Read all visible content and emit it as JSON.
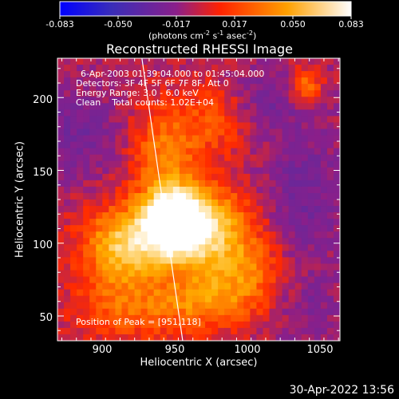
{
  "chart_data": {
    "type": "heatmap",
    "title": "Reconstructed RHESSI Image",
    "xlabel": "Heliocentric X (arcsec)",
    "ylabel": "Heliocentric Y (arcsec)",
    "xlim": [
      872,
      1066
    ],
    "ylim": [
      33,
      227
    ],
    "xticks": [
      "900",
      "950",
      "1000",
      "1050"
    ],
    "yticks": [
      "50",
      "100",
      "150",
      "200"
    ],
    "colorbar": {
      "ticks": [
        "-0.083",
        "-0.050",
        "-0.017",
        "0.017",
        "0.050",
        "0.083"
      ],
      "unit_prefix": "(photons cm",
      "unit_exp1": "-2",
      "unit_mid": " s",
      "unit_exp2": "-1",
      "unit_suffix": " asec",
      "unit_exp3": "-2",
      "unit_close": ")",
      "range": [
        -0.083,
        0.083
      ],
      "colormap": [
        "#0000ff",
        "#4b2fa8",
        "#8a1f8a",
        "#ff2a00",
        "#ffb000",
        "#ffffff"
      ]
    },
    "annotations": [
      "6-Apr-2003 01:39:04.000 to 01:45:04.000",
      "Detectors: 3F 4F 5F 6F 7F 8F, Att 0",
      "Energy Range: 3.0 - 6.0 keV",
      "Clean    Total counts: 1.02E+04"
    ],
    "peak_text": "Position of Peak = [951,118]",
    "peak": [
      951,
      118
    ],
    "sources": [
      {
        "x": 951,
        "y": 118,
        "amp": 0.083,
        "sx": 14,
        "sy": 14
      },
      {
        "x": 940,
        "y": 100,
        "amp": 0.055,
        "sx": 30,
        "sy": 16
      },
      {
        "x": 975,
        "y": 115,
        "amp": 0.05,
        "sx": 22,
        "sy": 18
      },
      {
        "x": 945,
        "y": 160,
        "amp": 0.04,
        "sx": 16,
        "sy": 25
      },
      {
        "x": 912,
        "y": 95,
        "amp": 0.03,
        "sx": 16,
        "sy": 22
      },
      {
        "x": 925,
        "y": 55,
        "amp": 0.03,
        "sx": 30,
        "sy": 16
      },
      {
        "x": 975,
        "y": 60,
        "amp": 0.03,
        "sx": 22,
        "sy": 14
      },
      {
        "x": 1000,
        "y": 80,
        "amp": 0.035,
        "sx": 22,
        "sy": 18
      },
      {
        "x": 980,
        "y": 185,
        "amp": 0.025,
        "sx": 16,
        "sy": 18
      },
      {
        "x": 1042,
        "y": 208,
        "amp": 0.04,
        "sx": 8,
        "sy": 8
      },
      {
        "x": 885,
        "y": 175,
        "amp": -0.02,
        "sx": 22,
        "sy": 22
      },
      {
        "x": 1040,
        "y": 130,
        "amp": -0.02,
        "sx": 20,
        "sy": 40
      },
      {
        "x": 1015,
        "y": 200,
        "amp": -0.018,
        "sx": 18,
        "sy": 14
      },
      {
        "x": 1045,
        "y": 55,
        "amp": -0.012,
        "sx": 16,
        "sy": 16
      }
    ],
    "limb_line": {
      "x1": 930,
      "y1": 227,
      "x2": 958,
      "y2": 33
    },
    "grid": false
  },
  "footer_date": "30-Apr-2022 13:56"
}
